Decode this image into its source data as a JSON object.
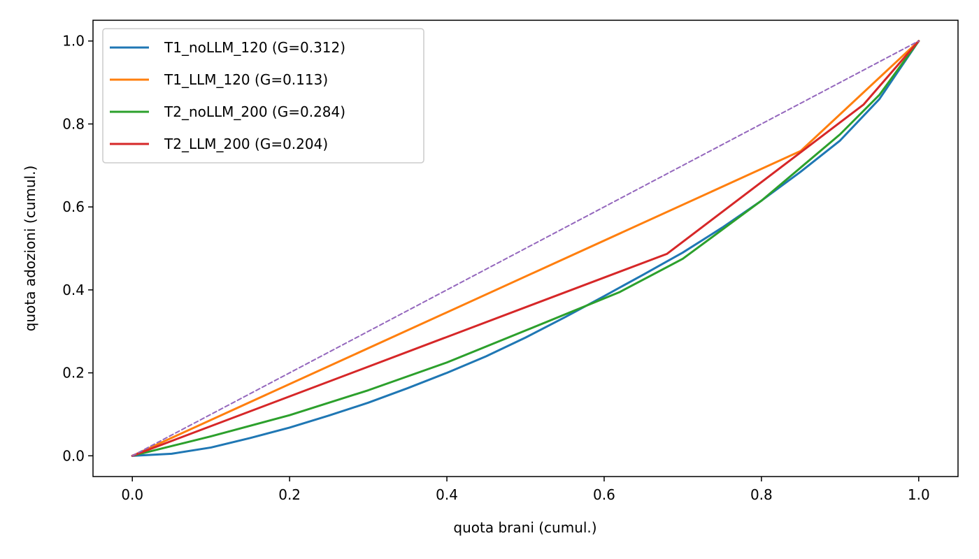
{
  "chart_data": {
    "type": "line",
    "title": "",
    "xlabel": "quota brani (cumul.)",
    "ylabel": "quota adozioni (cumul.)",
    "xlim": [
      -0.05,
      1.05
    ],
    "ylim": [
      -0.05,
      1.05
    ],
    "xticks": [
      0.0,
      0.2,
      0.4,
      0.6,
      0.8,
      1.0
    ],
    "yticks": [
      0.0,
      0.2,
      0.4,
      0.6,
      0.8,
      1.0
    ],
    "tick_labels_x": [
      "0.0",
      "0.2",
      "0.4",
      "0.6",
      "0.8",
      "1.0"
    ],
    "tick_labels_y": [
      "0.0",
      "0.2",
      "0.4",
      "0.6",
      "0.8",
      "1.0"
    ],
    "grid": false,
    "legend_position": "top-left",
    "series": [
      {
        "name": "T1_noLLM_120 (G=0.312)",
        "color": "#1f77b4",
        "x": [
          0,
          0.05,
          0.1,
          0.15,
          0.2,
          0.25,
          0.3,
          0.35,
          0.4,
          0.45,
          0.5,
          0.55,
          0.6,
          0.65,
          0.7,
          0.75,
          0.8,
          0.85,
          0.9,
          0.95,
          1.0
        ],
        "y": [
          0,
          0.005,
          0.02,
          0.043,
          0.068,
          0.097,
          0.128,
          0.163,
          0.2,
          0.24,
          0.285,
          0.334,
          0.385,
          0.437,
          0.49,
          0.55,
          0.615,
          0.685,
          0.76,
          0.86,
          1.0
        ]
      },
      {
        "name": "T1_LLM_120 (G=0.113)",
        "color": "#ff7f0e",
        "x": [
          0,
          0.85,
          1.0
        ],
        "y": [
          0,
          0.735,
          1.0
        ]
      },
      {
        "name": "T2_noLLM_200 (G=0.284)",
        "color": "#2ca02c",
        "x": [
          0,
          0.1,
          0.2,
          0.3,
          0.4,
          0.5,
          0.62,
          0.7,
          0.8,
          0.9,
          0.95,
          1.0
        ],
        "y": [
          0,
          0.047,
          0.098,
          0.158,
          0.225,
          0.302,
          0.395,
          0.475,
          0.615,
          0.775,
          0.87,
          1.0
        ]
      },
      {
        "name": "T2_LLM_200 (G=0.204)",
        "color": "#d62728",
        "x": [
          0,
          0.68,
          0.93,
          1.0
        ],
        "y": [
          0,
          0.487,
          0.847,
          1.0
        ]
      },
      {
        "name": "",
        "color": "#9467bd",
        "dashed": true,
        "x": [
          0,
          1.0
        ],
        "y": [
          0,
          1.0
        ]
      }
    ]
  }
}
